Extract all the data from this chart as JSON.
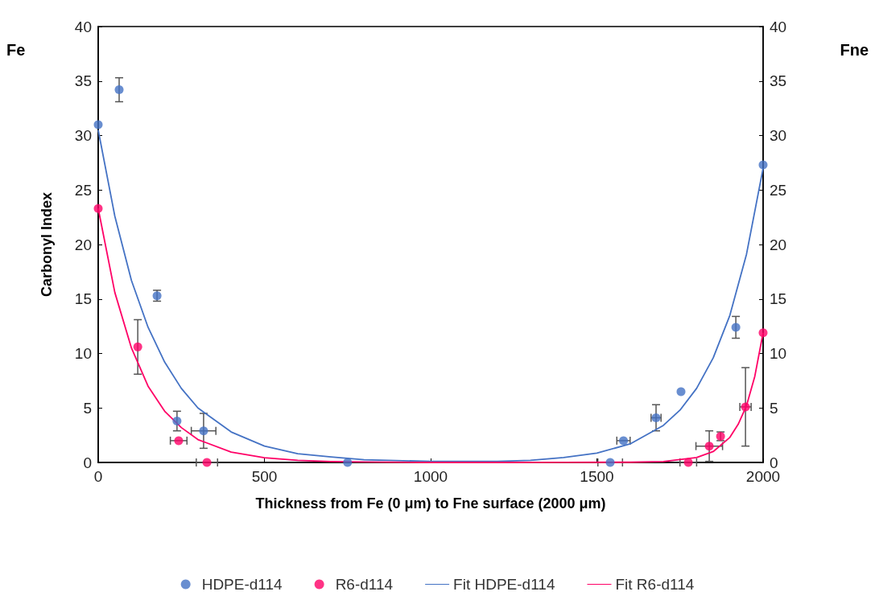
{
  "chart_data": {
    "type": "scatter",
    "xlabel": "Thickness from Fe (0 μm) to Fne surface (2000 μm)",
    "ylabel": "Carbonyl Index",
    "annotations": [
      "Fe",
      "Fne"
    ],
    "xlim": [
      0,
      2000
    ],
    "xticks": [
      0,
      500,
      1000,
      1500,
      2000
    ],
    "ylim": [
      0,
      40
    ],
    "yticks": [
      0,
      5,
      10,
      15,
      20,
      25,
      30,
      35,
      40
    ],
    "y2lim": [
      0,
      40
    ],
    "y2ticks": [
      0,
      5,
      10,
      15,
      20,
      25,
      30,
      35,
      40
    ],
    "grid": false,
    "legend": "bottom",
    "marker": "circle",
    "series": [
      {
        "name": "HDPE-d114",
        "color": "#4472c4",
        "x": [
          0,
          63,
          177,
          237,
          317,
          750,
          1540,
          1580,
          1678,
          1753,
          1918,
          2000
        ],
        "values": [
          31.0,
          34.2,
          15.3,
          3.8,
          2.9,
          0,
          0,
          2.0,
          4.1,
          6.5,
          12.4,
          27.3
        ],
        "errors": [
          null,
          1.1,
          0.5,
          0.9,
          1.6,
          null,
          null,
          null,
          1.2,
          null,
          1.0,
          null
        ],
        "xerrors": [
          null,
          null,
          null,
          null,
          37,
          null,
          37,
          20,
          15,
          null,
          null,
          null
        ]
      },
      {
        "name": "R6-d114",
        "color": "#ff0066",
        "x": [
          0,
          119,
          242,
          327,
          1775,
          1838,
          1872,
          1947,
          2000
        ],
        "values": [
          23.3,
          10.6,
          2.0,
          0,
          0,
          1.5,
          2.4,
          5.1,
          11.9
        ],
        "errors": [
          null,
          2.5,
          null,
          null,
          null,
          1.4,
          0.4,
          3.6,
          null
        ],
        "xerrors": [
          null,
          null,
          25,
          32,
          25,
          40,
          null,
          17,
          null
        ]
      },
      {
        "name": "Fit HDPE-d114",
        "type": "line",
        "marker": "none",
        "color": "#4472c4",
        "x": [
          0,
          50,
          100,
          150,
          200,
          250,
          300,
          400,
          500,
          600,
          700,
          800,
          1000,
          1200,
          1300,
          1400,
          1500,
          1600,
          1700,
          1750,
          1800,
          1850,
          1900,
          1950,
          2000
        ],
        "values": [
          30.5,
          22.6,
          16.7,
          12.4,
          9.2,
          6.8,
          5.0,
          2.8,
          1.5,
          0.8,
          0.5,
          0.25,
          0.1,
          0.1,
          0.2,
          0.45,
          0.86,
          1.7,
          3.4,
          4.8,
          6.8,
          9.6,
          13.5,
          19.1,
          27.0
        ]
      },
      {
        "name": "Fit R6-d114",
        "type": "line",
        "marker": "none",
        "color": "#ff0066",
        "x": [
          0,
          50,
          100,
          150,
          200,
          250,
          300,
          400,
          500,
          600,
          700,
          800,
          1000,
          1200,
          1400,
          1600,
          1700,
          1800,
          1850,
          1900,
          1925,
          1950,
          1975,
          2000
        ],
        "values": [
          23.3,
          15.6,
          10.5,
          7.0,
          4.7,
          3.2,
          2.1,
          0.95,
          0.43,
          0.2,
          0.09,
          0.04,
          0,
          0,
          0.01,
          0.02,
          0.09,
          0.45,
          1.0,
          2.3,
          3.5,
          5.2,
          7.9,
          11.9
        ]
      }
    ]
  }
}
